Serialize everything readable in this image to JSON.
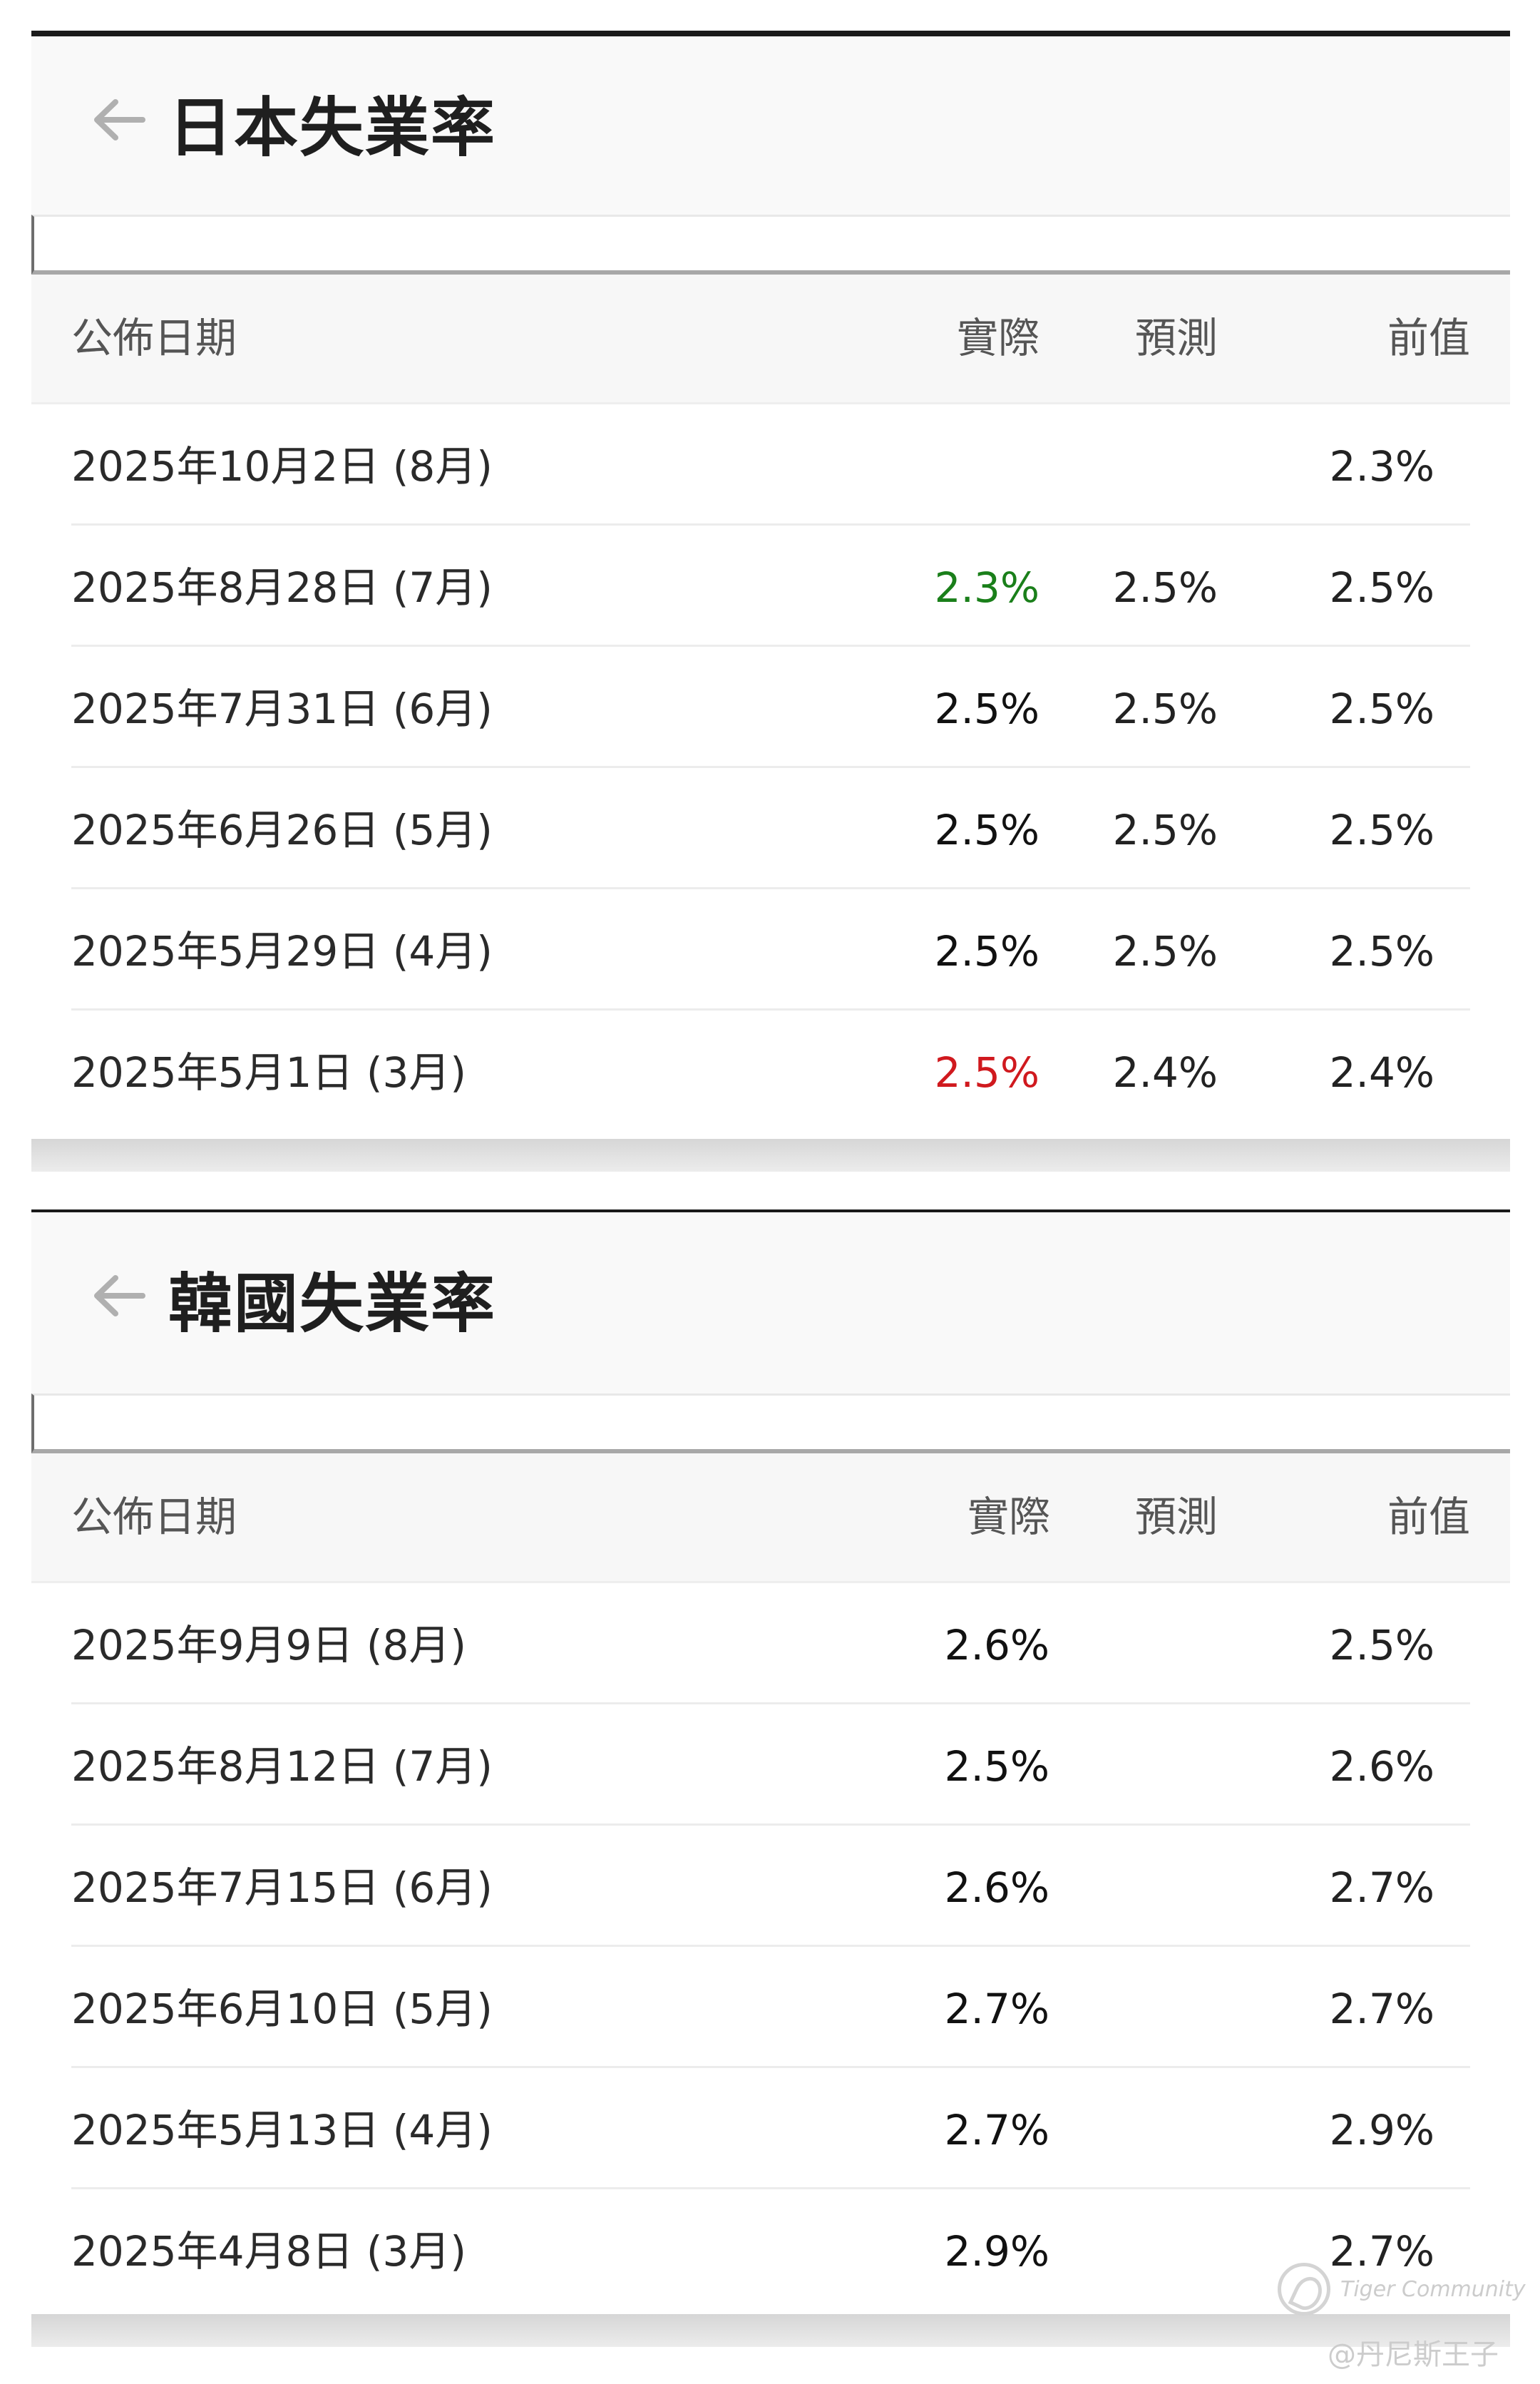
{
  "colors": {
    "positive": "#1a7f1a",
    "negative": "#d0191e",
    "header_bg": "#f9f9f9"
  },
  "icons": {
    "back": "arrow-left-icon",
    "watermark_logo": "tiger-logo-icon"
  },
  "japan": {
    "title": "日本失業率",
    "columns": {
      "date": "公佈日期",
      "actual": "實際",
      "forecast": "預測",
      "previous": "前值"
    },
    "rows": [
      {
        "date": "2025年10月2日 (8月)",
        "actual": "",
        "forecast": "",
        "previous": "2.3%",
        "actual_status": ""
      },
      {
        "date": "2025年8月28日 (7月)",
        "actual": "2.3%",
        "forecast": "2.5%",
        "previous": "2.5%",
        "actual_status": "positive"
      },
      {
        "date": "2025年7月31日 (6月)",
        "actual": "2.5%",
        "forecast": "2.5%",
        "previous": "2.5%",
        "actual_status": ""
      },
      {
        "date": "2025年6月26日 (5月)",
        "actual": "2.5%",
        "forecast": "2.5%",
        "previous": "2.5%",
        "actual_status": ""
      },
      {
        "date": "2025年5月29日 (4月)",
        "actual": "2.5%",
        "forecast": "2.5%",
        "previous": "2.5%",
        "actual_status": ""
      },
      {
        "date": "2025年5月1日 (3月)",
        "actual": "2.5%",
        "forecast": "2.4%",
        "previous": "2.4%",
        "actual_status": "negative"
      }
    ]
  },
  "korea": {
    "title": "韓國失業率",
    "columns": {
      "date": "公佈日期",
      "actual": "實際",
      "forecast": "預測",
      "previous": "前值"
    },
    "rows": [
      {
        "date": "2025年9月9日 (8月)",
        "actual": "2.6%",
        "forecast": "",
        "previous": "2.5%"
      },
      {
        "date": "2025年8月12日 (7月)",
        "actual": "2.5%",
        "forecast": "",
        "previous": "2.6%"
      },
      {
        "date": "2025年7月15日 (6月)",
        "actual": "2.6%",
        "forecast": "",
        "previous": "2.7%"
      },
      {
        "date": "2025年6月10日 (5月)",
        "actual": "2.7%",
        "forecast": "",
        "previous": "2.7%"
      },
      {
        "date": "2025年5月13日 (4月)",
        "actual": "2.7%",
        "forecast": "",
        "previous": "2.9%"
      },
      {
        "date": "2025年4月8日 (3月)",
        "actual": "2.9%",
        "forecast": "",
        "previous": "2.7%"
      }
    ]
  },
  "watermark": {
    "brand": "Tiger Community",
    "user": "@丹尼斯王子"
  }
}
